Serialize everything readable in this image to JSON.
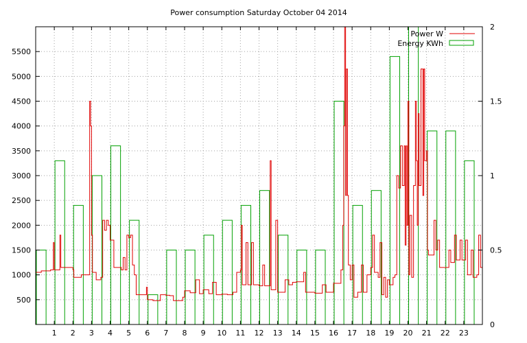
{
  "chart_data": {
    "type": "bar",
    "title": "Power consumption Saturday October 04 2014",
    "xlabel": "",
    "ylabel": "",
    "y2label": "",
    "xlim": [
      0,
      24
    ],
    "ylim": [
      0,
      6000
    ],
    "y2lim": [
      0,
      2
    ],
    "grid": true,
    "legend_position": "top-right",
    "x_ticks": [
      "1",
      "2",
      "3",
      "4",
      "5",
      "6",
      "7",
      "8",
      "9",
      "10",
      "11",
      "12",
      "13",
      "14",
      "15",
      "16",
      "17",
      "18",
      "19",
      "20",
      "21",
      "22",
      "23"
    ],
    "y_ticks": [
      "500",
      "1000",
      "1500",
      "2000",
      "2500",
      "3000",
      "3500",
      "4000",
      "4500",
      "5000",
      "5500"
    ],
    "y2_ticks": [
      "0",
      "0.5",
      "1",
      "1.5",
      "2"
    ],
    "series": [
      {
        "name": "Power W",
        "type": "line",
        "axis": "y",
        "color": "#e00000",
        "points": [
          [
            0,
            1050
          ],
          [
            0.3,
            1080
          ],
          [
            0.8,
            1100
          ],
          [
            0.95,
            1650
          ],
          [
            1.0,
            1100
          ],
          [
            1.3,
            1800
          ],
          [
            1.35,
            1150
          ],
          [
            1.9,
            1150
          ],
          [
            2.0,
            1100
          ],
          [
            2.05,
            950
          ],
          [
            2.4,
            950
          ],
          [
            2.45,
            1000
          ],
          [
            2.85,
            1000
          ],
          [
            2.9,
            4500
          ],
          [
            2.95,
            4000
          ],
          [
            3.0,
            1800
          ],
          [
            3.05,
            1050
          ],
          [
            3.2,
            1050
          ],
          [
            3.25,
            900
          ],
          [
            3.5,
            950
          ],
          [
            3.6,
            2100
          ],
          [
            3.7,
            1900
          ],
          [
            3.8,
            2100
          ],
          [
            3.9,
            2000
          ],
          [
            4.0,
            1700
          ],
          [
            4.1,
            1700
          ],
          [
            4.2,
            1150
          ],
          [
            4.6,
            1100
          ],
          [
            4.7,
            1350
          ],
          [
            4.8,
            1100
          ],
          [
            4.9,
            1800
          ],
          [
            5.0,
            1750
          ],
          [
            5.1,
            1800
          ],
          [
            5.2,
            1200
          ],
          [
            5.3,
            1000
          ],
          [
            5.4,
            600
          ],
          [
            5.6,
            600
          ],
          [
            5.9,
            600
          ],
          [
            5.95,
            750
          ],
          [
            6.0,
            500
          ],
          [
            6.3,
            480
          ],
          [
            6.6,
            480
          ],
          [
            6.7,
            600
          ],
          [
            7.0,
            590
          ],
          [
            7.2,
            580
          ],
          [
            7.4,
            480
          ],
          [
            7.7,
            480
          ],
          [
            7.9,
            550
          ],
          [
            8.0,
            680
          ],
          [
            8.3,
            640
          ],
          [
            8.6,
            900
          ],
          [
            8.8,
            620
          ],
          [
            9.0,
            700
          ],
          [
            9.3,
            620
          ],
          [
            9.5,
            850
          ],
          [
            9.7,
            600
          ],
          [
            10.0,
            610
          ],
          [
            10.3,
            600
          ],
          [
            10.6,
            650
          ],
          [
            10.8,
            1050
          ],
          [
            11.0,
            1100
          ],
          [
            11.05,
            2000
          ],
          [
            11.1,
            800
          ],
          [
            11.3,
            1650
          ],
          [
            11.4,
            800
          ],
          [
            11.6,
            1650
          ],
          [
            11.7,
            800
          ],
          [
            12.0,
            780
          ],
          [
            12.2,
            1200
          ],
          [
            12.3,
            780
          ],
          [
            12.5,
            780
          ],
          [
            12.6,
            3300
          ],
          [
            12.65,
            700
          ],
          [
            12.8,
            700
          ],
          [
            12.9,
            2100
          ],
          [
            13.0,
            650
          ],
          [
            13.3,
            650
          ],
          [
            13.4,
            900
          ],
          [
            13.6,
            800
          ],
          [
            13.8,
            850
          ],
          [
            14.0,
            860
          ],
          [
            14.3,
            860
          ],
          [
            14.4,
            1050
          ],
          [
            14.5,
            650
          ],
          [
            14.9,
            650
          ],
          [
            15.0,
            630
          ],
          [
            15.3,
            630
          ],
          [
            15.4,
            800
          ],
          [
            15.6,
            650
          ],
          [
            15.9,
            650
          ],
          [
            16.0,
            830
          ],
          [
            16.3,
            830
          ],
          [
            16.4,
            1100
          ],
          [
            16.5,
            2000
          ],
          [
            16.55,
            4000
          ],
          [
            16.6,
            6000
          ],
          [
            16.65,
            2600
          ],
          [
            16.7,
            5150
          ],
          [
            16.75,
            2600
          ],
          [
            16.8,
            1200
          ],
          [
            16.9,
            900
          ],
          [
            17.0,
            1200
          ],
          [
            17.1,
            550
          ],
          [
            17.3,
            650
          ],
          [
            17.5,
            1200
          ],
          [
            17.6,
            650
          ],
          [
            17.8,
            1000
          ],
          [
            18.0,
            1150
          ],
          [
            18.1,
            1800
          ],
          [
            18.2,
            1050
          ],
          [
            18.4,
            950
          ],
          [
            18.5,
            1650
          ],
          [
            18.6,
            600
          ],
          [
            18.7,
            950
          ],
          [
            18.8,
            550
          ],
          [
            18.9,
            900
          ],
          [
            19.0,
            800
          ],
          [
            19.2,
            950
          ],
          [
            19.3,
            1000
          ],
          [
            19.4,
            3000
          ],
          [
            19.5,
            2750
          ],
          [
            19.6,
            3600
          ],
          [
            19.7,
            2800
          ],
          [
            19.8,
            3600
          ],
          [
            19.85,
            1600
          ],
          [
            19.9,
            3600
          ],
          [
            19.95,
            2000
          ],
          [
            20.0,
            4500
          ],
          [
            20.05,
            1000
          ],
          [
            20.1,
            2200
          ],
          [
            20.2,
            950
          ],
          [
            20.3,
            2800
          ],
          [
            20.4,
            4500
          ],
          [
            20.45,
            3300
          ],
          [
            20.5,
            2000
          ],
          [
            20.55,
            4250
          ],
          [
            20.6,
            2800
          ],
          [
            20.7,
            5150
          ],
          [
            20.8,
            2600
          ],
          [
            20.85,
            5150
          ],
          [
            20.9,
            3300
          ],
          [
            21.0,
            3500
          ],
          [
            21.05,
            1500
          ],
          [
            21.1,
            1400
          ],
          [
            21.3,
            1400
          ],
          [
            21.4,
            2100
          ],
          [
            21.5,
            1500
          ],
          [
            21.6,
            1700
          ],
          [
            21.7,
            1150
          ],
          [
            22.0,
            1150
          ],
          [
            22.2,
            1500
          ],
          [
            22.3,
            1250
          ],
          [
            22.5,
            1800
          ],
          [
            22.6,
            1300
          ],
          [
            22.8,
            1700
          ],
          [
            22.9,
            1300
          ],
          [
            23.0,
            1300
          ],
          [
            23.1,
            1700
          ],
          [
            23.2,
            1000
          ],
          [
            23.4,
            1500
          ],
          [
            23.5,
            950
          ],
          [
            23.7,
            1000
          ],
          [
            23.8,
            1800
          ],
          [
            23.9,
            1150
          ],
          [
            24.0,
            1250
          ]
        ]
      },
      {
        "name": "Energy KWh",
        "type": "bar",
        "axis": "y2",
        "color": "#00a000",
        "values": [
          0.5,
          1.1,
          0.8,
          1.0,
          1.2,
          0.7,
          0.2,
          0.5,
          0.5,
          0.6,
          0.7,
          0.8,
          0.9,
          0.6,
          0.5,
          0.5,
          1.5,
          0.8,
          0.9,
          1.8,
          2.0,
          1.3,
          1.3,
          1.1
        ]
      }
    ]
  }
}
